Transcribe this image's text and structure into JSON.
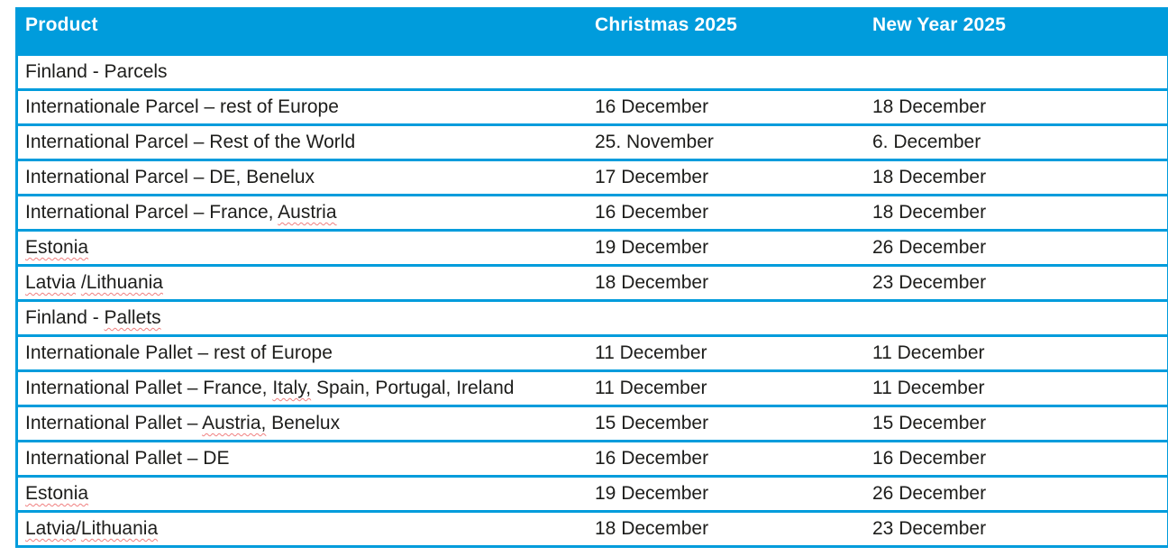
{
  "colors": {
    "accent": "#009cdc",
    "text": "#1d1d1b",
    "header_text": "#ffffff",
    "spellcheck_underline": "#f08080"
  },
  "table": {
    "headers": [
      {
        "label": "Product"
      },
      {
        "label": "Christmas 2025"
      },
      {
        "label": "New Year 2025"
      }
    ],
    "rows": [
      {
        "type": "section",
        "product": "Finland - Parcels",
        "christmas": "",
        "newyear": "",
        "misspelled": []
      },
      {
        "type": "data",
        "product": "Internationale Parcel – rest of Europe",
        "christmas": "16 December",
        "newyear": "18 December",
        "misspelled": []
      },
      {
        "type": "data",
        "product": "International Parcel – Rest of the World",
        "christmas": "25. November",
        "newyear": "6. December",
        "misspelled": []
      },
      {
        "type": "data",
        "product": "International Parcel – DE, Benelux",
        "christmas": "17 December",
        "newyear": "18 December",
        "misspelled": []
      },
      {
        "type": "data",
        "product": "International Parcel – France, Austria",
        "christmas": "16 December",
        "newyear": "18 December",
        "misspelled": [
          "Austria"
        ]
      },
      {
        "type": "data",
        "product": "Estonia",
        "christmas": "19 December",
        "newyear": "26 December",
        "misspelled": [
          "Estonia"
        ]
      },
      {
        "type": "data",
        "product": "Latvia  /Lithuania",
        "christmas": "18 December",
        "newyear": "23 December",
        "misspelled": [
          "Latvia",
          "/Lithuania"
        ]
      },
      {
        "type": "section",
        "product": "Finland - Pallets",
        "christmas": "",
        "newyear": "",
        "misspelled": [
          "Pallets"
        ]
      },
      {
        "type": "data",
        "product": "Internationale Pallet – rest of Europe",
        "christmas": "11 December",
        "newyear": "11 December",
        "misspelled": []
      },
      {
        "type": "data",
        "product": "International Pallet – France, Italy, Spain, Portugal, Ireland",
        "christmas": "11 December",
        "newyear": "11 December",
        "misspelled": [
          "Italy,"
        ]
      },
      {
        "type": "data",
        "product": "International Pallet – Austria, Benelux",
        "christmas": "15 December",
        "newyear": "15 December",
        "misspelled": [
          "Austria,"
        ]
      },
      {
        "type": "data",
        "product": "International Pallet – DE",
        "christmas": "16 December",
        "newyear": "16 December",
        "misspelled": []
      },
      {
        "type": "data",
        "product": "Estonia",
        "christmas": "19 December",
        "newyear": "26 December",
        "misspelled": [
          "Estonia"
        ]
      },
      {
        "type": "data",
        "product": "Latvia/Lithuania",
        "christmas": "18 December",
        "newyear": "23 December",
        "misspelled": [
          "Latvia",
          "Lithuania"
        ]
      }
    ]
  }
}
